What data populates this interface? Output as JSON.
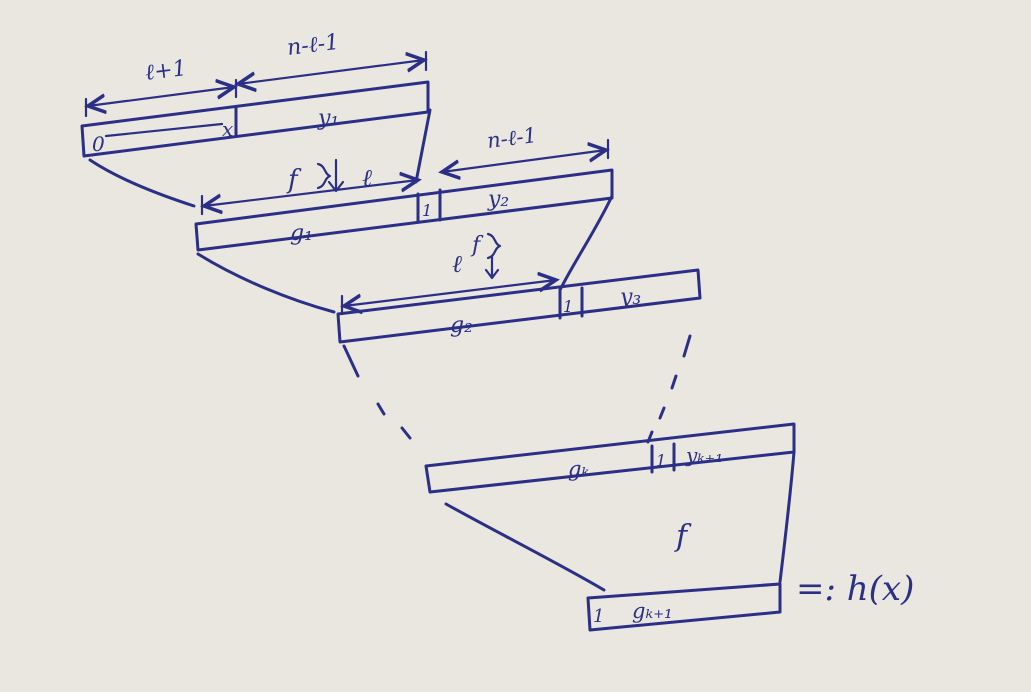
{
  "labels": {
    "top_left_width": "ℓ+1",
    "top_right_width": "n-ℓ-1",
    "box1_zero": "0",
    "box1_x": "x",
    "box1_y": "y₁",
    "f_arrow_1": "f",
    "ell_1": "ℓ",
    "box2_g1": "g₁",
    "box2_one": "1",
    "box2_y2": "y₂",
    "box2_width": "n-ℓ-1",
    "ell_2": "ℓ",
    "f_arrow_2": "f",
    "box3_g2": "g₂",
    "box3_one": "1",
    "box3_y3": "y₃",
    "box4_gk": "gₖ",
    "box4_one": "1",
    "box4_yk1": "yₖ₊₁",
    "f_final": "f",
    "box5_one": "1",
    "box5_gk1": "gₖ₊₁",
    "result": "=: h(x)"
  },
  "colors": {
    "ink": "#2b2f86",
    "paper": "#e9e7e0"
  }
}
